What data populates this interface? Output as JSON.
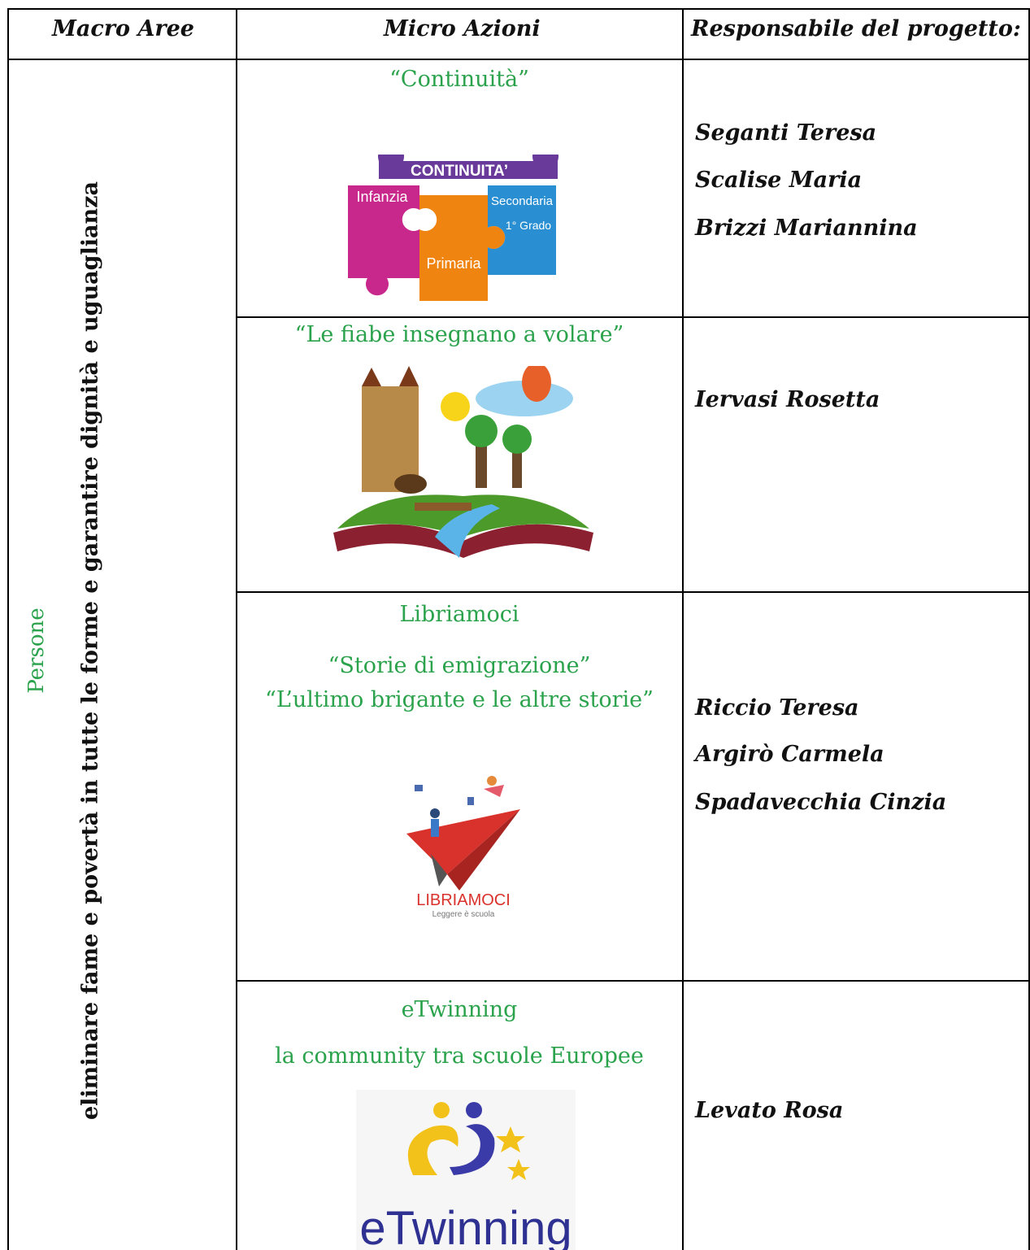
{
  "table": {
    "headers": [
      "Macro Aree",
      "Micro Azioni",
      "Responsabile del progetto:"
    ],
    "macro_area": {
      "label": "Persone",
      "description": "eliminare fame e povertà in tutte le forme e garantire dignità e uguaglianza"
    },
    "rows": [
      {
        "titles": [
          "“Continuità”"
        ],
        "logo_texts": [
          "CONTINUITA’",
          "Infanzia",
          "Secondaria",
          "1° Grado",
          "Primaria"
        ],
        "responsabili": [
          "Seganti Teresa",
          "Scalise Maria",
          "Brizzi Mariannina"
        ]
      },
      {
        "titles": [
          "“Le fiabe insegnano a volare”"
        ],
        "responsabili": [
          "Iervasi Rosetta"
        ]
      },
      {
        "titles": [
          "Libriamoci",
          "“Storie di emigrazione”",
          "“L’ultimo brigante e le altre storie”"
        ],
        "logo_texts": [
          "LIBRIAMOCI",
          "Leggere è scuola"
        ],
        "responsabili": [
          "Riccio Teresa",
          "Argirò Carmela",
          "Spadavecchia Cinzia"
        ]
      },
      {
        "titles": [
          "eTwinning",
          "la community tra scuole Europee"
        ],
        "logo_texts": [
          "eTwinning"
        ],
        "responsabili": [
          "Levato Rosa"
        ]
      }
    ]
  }
}
